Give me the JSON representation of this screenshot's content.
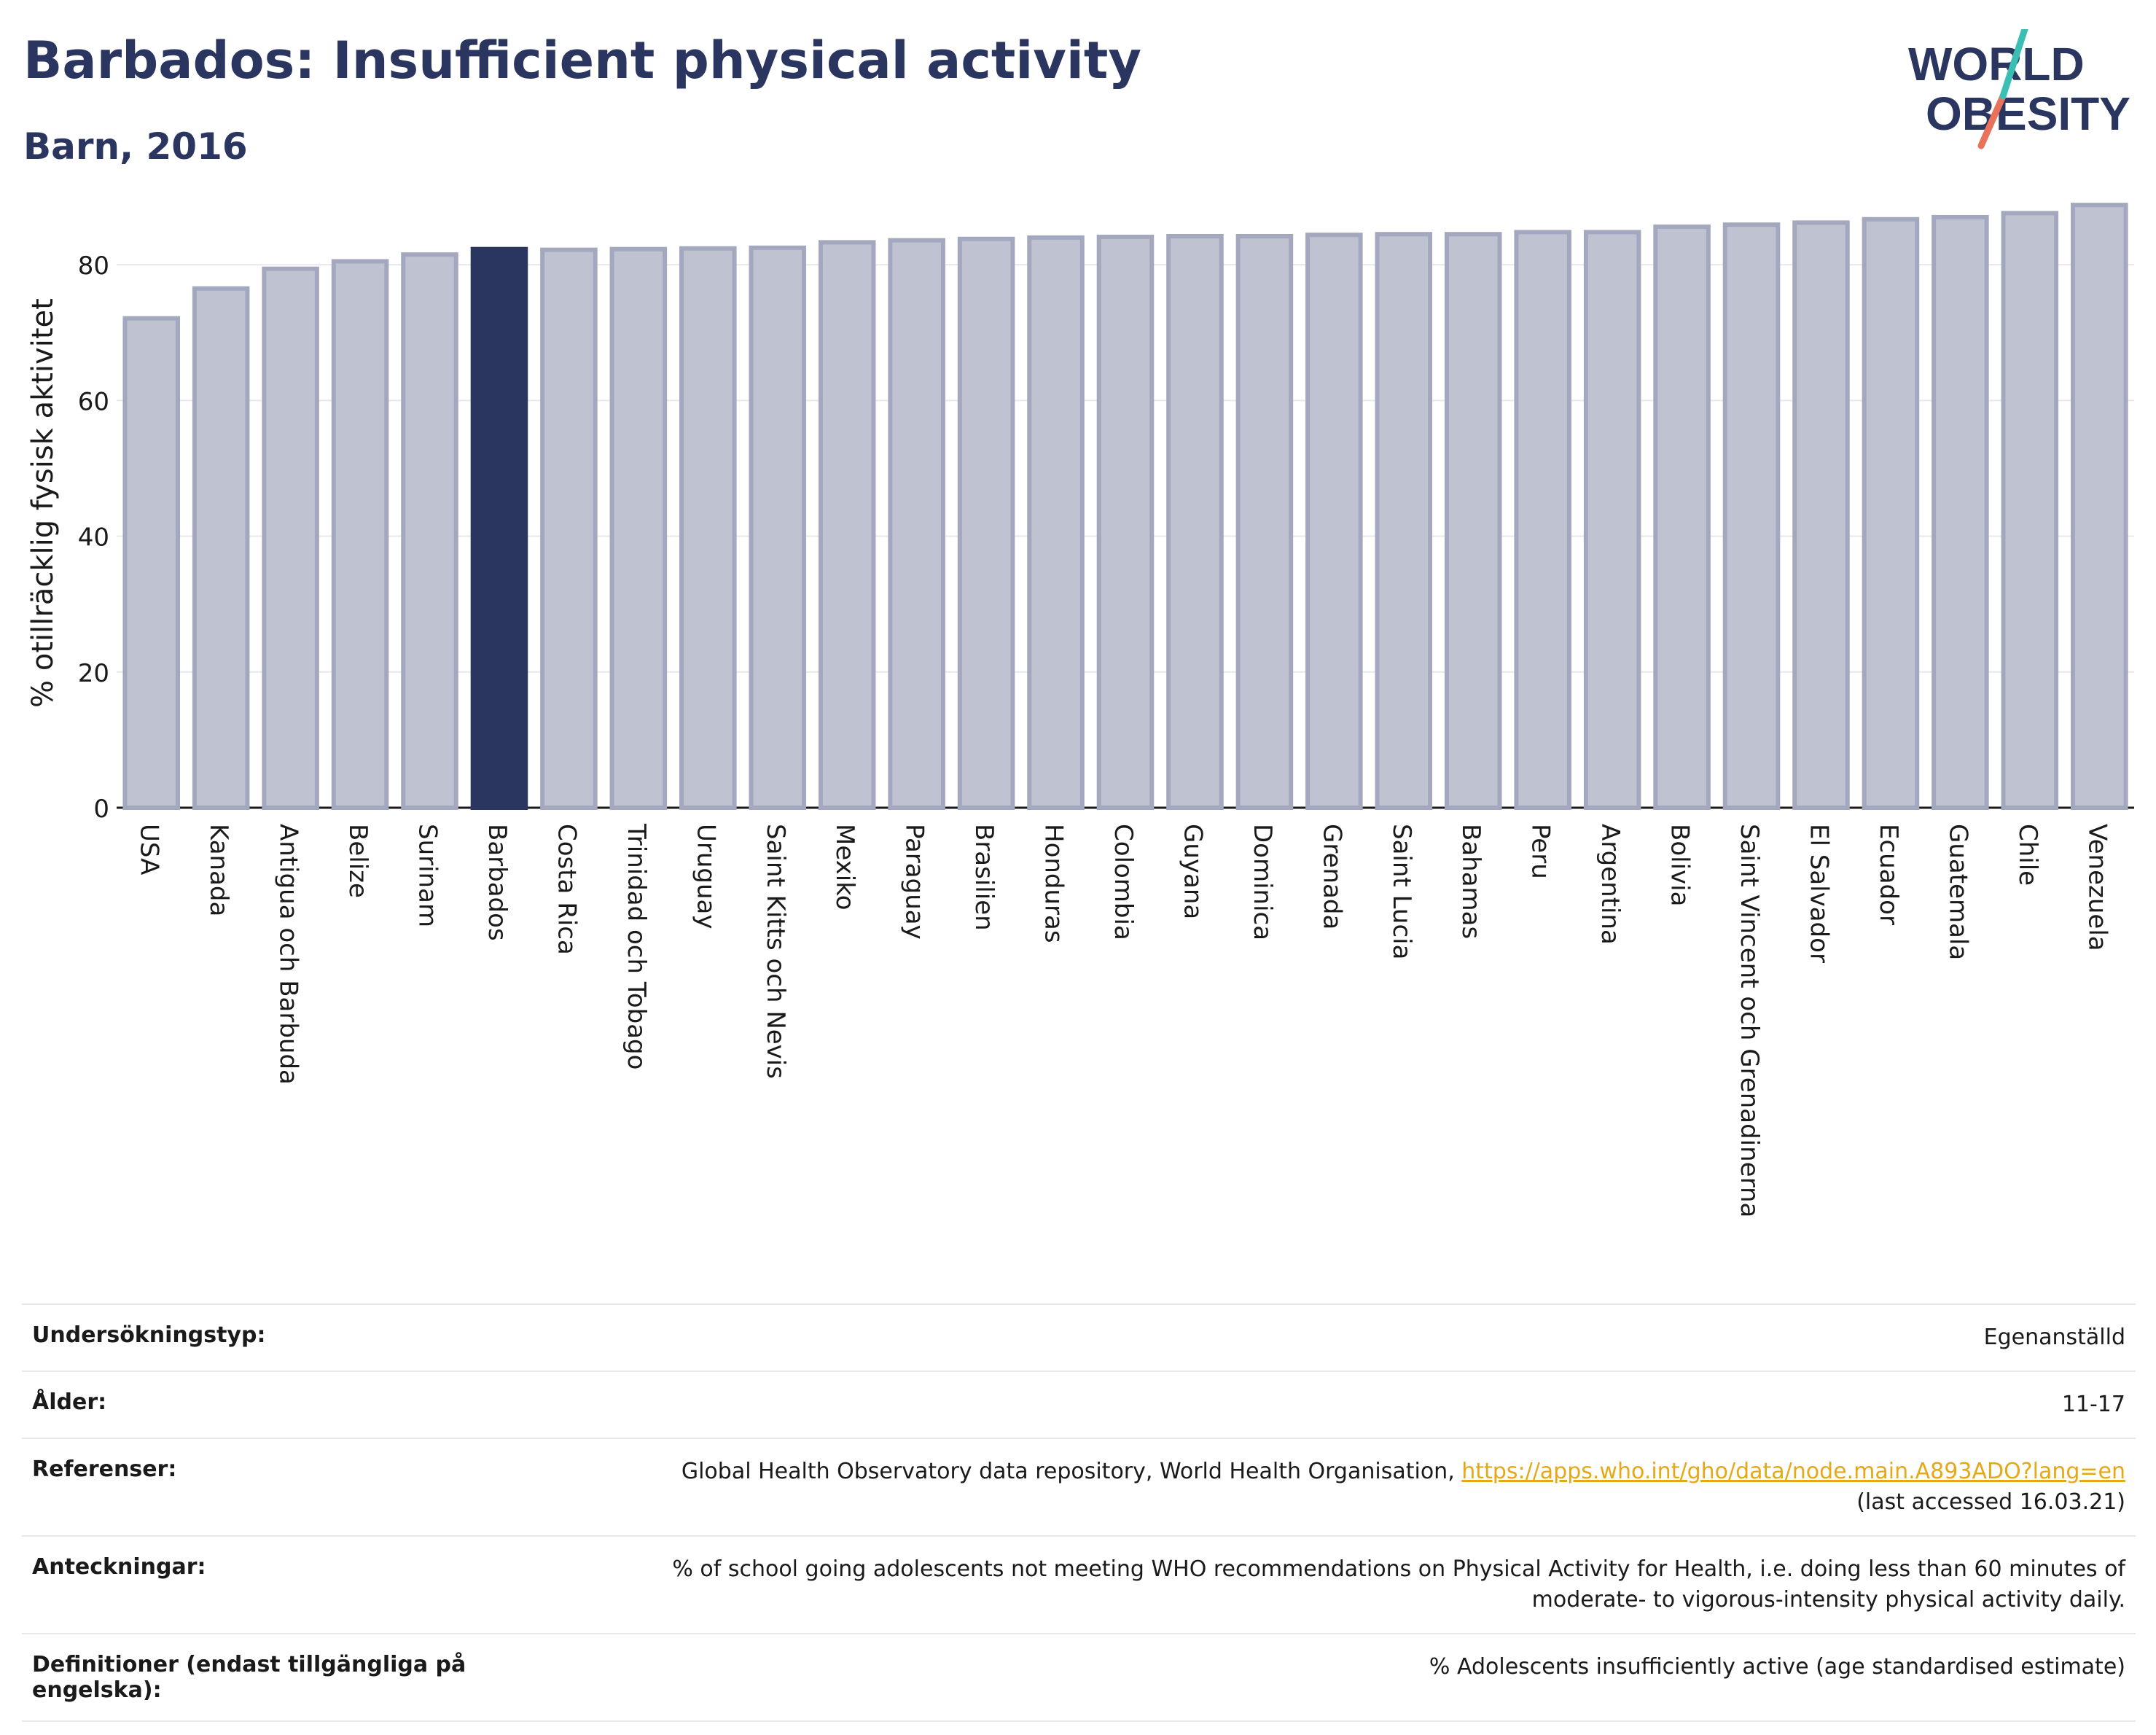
{
  "header": {
    "title": "Barbados: Insufficient physical activity",
    "subtitle": "Barn, 2016",
    "logo_line1": "WORLD",
    "logo_line2": "OBESITY"
  },
  "colors": {
    "bar": "#bfc2d1",
    "bar_border": "#a3a8bf",
    "highlight": "#2a3560",
    "text": "#2a3560",
    "link": "#e6a817",
    "logo_teal": "#3bbfb4",
    "logo_coral": "#e8735a"
  },
  "chart_data": {
    "type": "bar",
    "ylabel": "% otillräcklig fysisk aktivitet",
    "ylim": [
      0,
      90
    ],
    "yticks": [
      0,
      20,
      40,
      60,
      80
    ],
    "grid": true,
    "highlight": "Barbados",
    "categories": [
      "USA",
      "Kanada",
      "Antigua och Barbuda",
      "Belize",
      "Surinam",
      "Barbados",
      "Costa Rica",
      "Trinidad och Tobago",
      "Uruguay",
      "Saint Kitts och Nevis",
      "Mexiko",
      "Paraguay",
      "Brasilien",
      "Honduras",
      "Colombia",
      "Guyana",
      "Dominica",
      "Grenada",
      "Saint Lucia",
      "Bahamas",
      "Peru",
      "Argentina",
      "Bolivia",
      "Saint Vincent och Grenadinerna",
      "El Salvador",
      "Ecuador",
      "Guatemala",
      "Chile",
      "Venezuela"
    ],
    "values": [
      72.1,
      76.5,
      79.4,
      80.5,
      81.5,
      82.3,
      82.2,
      82.3,
      82.4,
      82.5,
      83.3,
      83.6,
      83.8,
      84.0,
      84.1,
      84.2,
      84.2,
      84.4,
      84.5,
      84.5,
      84.8,
      84.8,
      85.6,
      85.9,
      86.2,
      86.7,
      87.0,
      87.6,
      88.8
    ]
  },
  "info": {
    "rows": [
      {
        "key": "Undersökningstyp:",
        "value": "Egenanställd"
      },
      {
        "key": "Ålder:",
        "value": "11-17"
      },
      {
        "key": "Referenser:",
        "value": "Global Health Observatory data repository, World Health Organisation, ",
        "link": "https://apps.who.int/gho/data/node.main.A893ADO?lang=en",
        "value2": "(last accessed 16.03.21)"
      },
      {
        "key": "Anteckningar:",
        "value": "% of school going adolescents not meeting WHO recommendations on Physical Activity for Health, i.e. doing less than 60 minutes of",
        "value2": "moderate- to vigorous-intensity physical activity daily."
      },
      {
        "key": "Definitioner (endast tillgängliga på engelska):",
        "value": "% Adolescents insufficiently active (age standardised estimate)"
      }
    ]
  }
}
